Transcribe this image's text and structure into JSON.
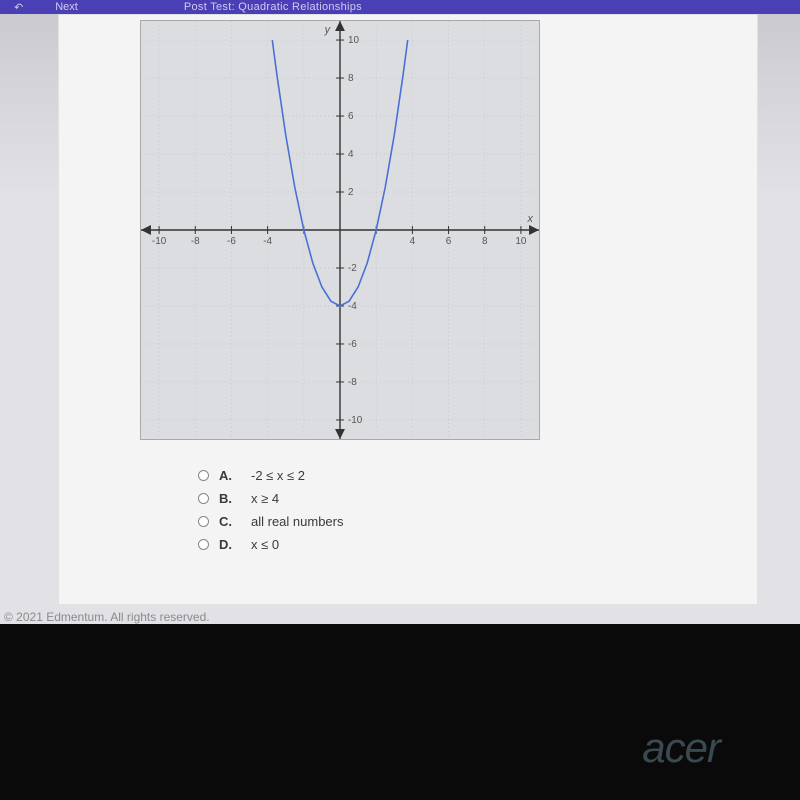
{
  "topbar": {
    "prev": "",
    "next": "Next",
    "title": "Post Test: Quadratic Relationships"
  },
  "chart": {
    "type": "line",
    "x_axis_label": "x",
    "y_axis_label": "y",
    "x_top_tick_label": "10",
    "xlim": [
      -11,
      11
    ],
    "ylim": [
      -11,
      11
    ],
    "ticks": [
      -10,
      -8,
      -6,
      -4,
      -2,
      2,
      4,
      6,
      8,
      10
    ],
    "xtick_labels": [
      "-10",
      "-8",
      "-6",
      "-4",
      "",
      "",
      "4",
      "6",
      "8",
      "10"
    ],
    "ytick_labels": [
      "10",
      "8",
      "6",
      "4",
      "2",
      "-2",
      "-4",
      "-6",
      "-8",
      "-10"
    ],
    "grid_color": "#bfbfc4",
    "axis_color": "#333333",
    "background_color": "#dcdde0",
    "curve_color": "#4a6fd8",
    "curve_width": 1.6,
    "vertex": [
      0,
      -4
    ],
    "points": [
      [
        -3.742,
        10
      ],
      [
        -3.5,
        8.25
      ],
      [
        -3,
        5
      ],
      [
        -2.5,
        2.25
      ],
      [
        -2,
        0
      ],
      [
        -1.5,
        -1.75
      ],
      [
        -1,
        -3
      ],
      [
        -0.5,
        -3.75
      ],
      [
        0,
        -4
      ],
      [
        0.5,
        -3.75
      ],
      [
        1,
        -3
      ],
      [
        1.5,
        -1.75
      ],
      [
        2,
        0
      ],
      [
        2.5,
        2.25
      ],
      [
        3,
        5
      ],
      [
        3.5,
        8.25
      ],
      [
        3.742,
        10
      ]
    ],
    "tick_font_size": 10,
    "tick_color": "#555555"
  },
  "answers": {
    "items": [
      {
        "letter": "A.",
        "text": "-2 ≤ x ≤ 2"
      },
      {
        "letter": "B.",
        "text": "x ≥ 4"
      },
      {
        "letter": "C.",
        "text": "all real numbers"
      },
      {
        "letter": "D.",
        "text": "x ≤ 0"
      }
    ]
  },
  "footer": {
    "copyright": "© 2021 Edmentum. All rights reserved."
  },
  "laptop": {
    "brand": "acer"
  }
}
